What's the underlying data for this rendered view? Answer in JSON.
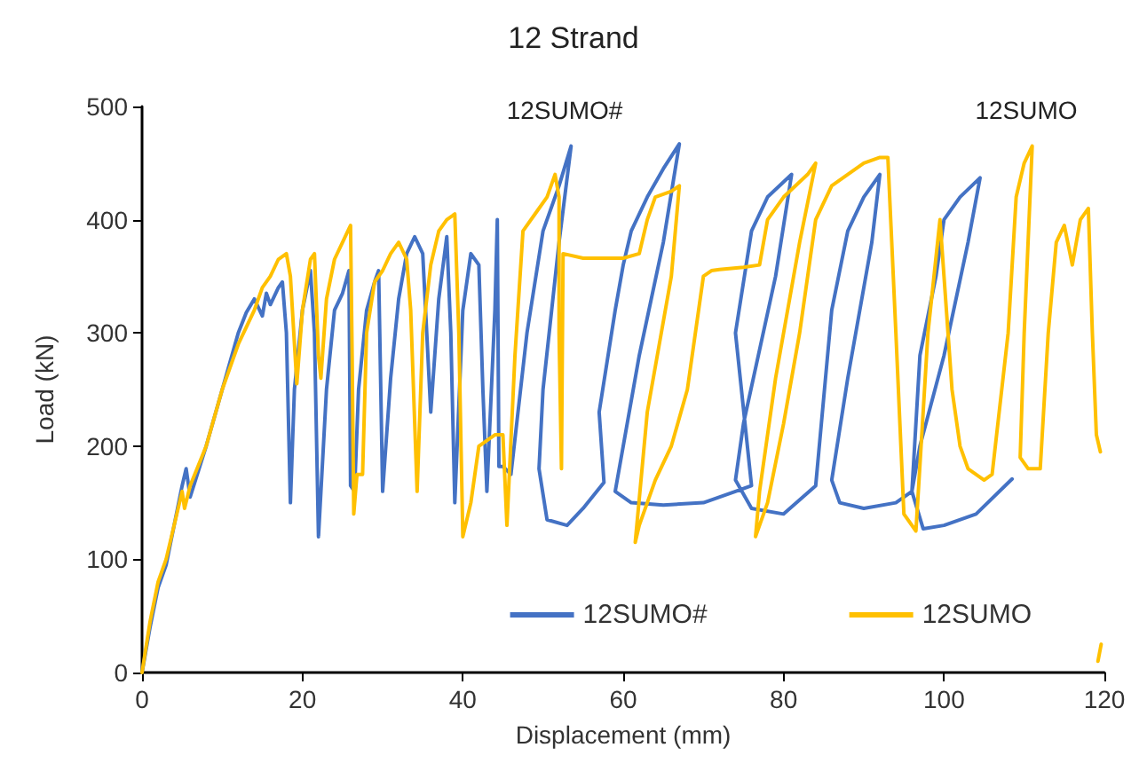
{
  "chart_data": {
    "type": "line",
    "title": "12 Strand",
    "xlabel": "Displacement (mm)",
    "ylabel": "Load (kN)",
    "xlim": [
      0,
      120
    ],
    "xticks": [
      0,
      20,
      40,
      60,
      80,
      100,
      120
    ],
    "ylim": [
      0,
      500
    ],
    "yticks": [
      0,
      100,
      200,
      300,
      400,
      500
    ],
    "grid": false,
    "legend": "bottom right",
    "marker": "none",
    "line_style": "solid",
    "annotations": [
      "12SUMO#",
      "12SUMO"
    ],
    "series": [
      {
        "name": "12SUMO#",
        "color": "#4472c4",
        "x": [
          0,
          1,
          2,
          3,
          4,
          5,
          5.5,
          6,
          8,
          10,
          12,
          13,
          14,
          15,
          15.5,
          16,
          17,
          17.5,
          18,
          18.5,
          19,
          20,
          21,
          21.5,
          22,
          23,
          24,
          25,
          25.8,
          26,
          26.5,
          27,
          28,
          29,
          29.5,
          30,
          31,
          32,
          33,
          34,
          35,
          35.5,
          36,
          37,
          38,
          38.5,
          39,
          40,
          41,
          42,
          42.5,
          43,
          44,
          44.3,
          44.5,
          45,
          46,
          48,
          50,
          52,
          53.5,
          52,
          50,
          49.5,
          50.5,
          53,
          55,
          57.6,
          57,
          59,
          60,
          61,
          63,
          65,
          67,
          65,
          62,
          60,
          59,
          61,
          65,
          70,
          74,
          76,
          74,
          76,
          78,
          81,
          79,
          75,
          74,
          76,
          80,
          84,
          86,
          88,
          90,
          92,
          91,
          88,
          86,
          87,
          90,
          94,
          96,
          97,
          99,
          100,
          102,
          104.5,
          103,
          100,
          97,
          96,
          97.4,
          100,
          104,
          108.5
        ],
        "values": [
          0,
          40,
          75,
          95,
          130,
          165,
          180,
          155,
          200,
          250,
          300,
          318,
          330,
          315,
          335,
          325,
          340,
          345,
          300,
          150,
          250,
          320,
          355,
          300,
          120,
          250,
          320,
          335,
          355,
          165,
          160,
          250,
          320,
          345,
          355,
          160,
          260,
          330,
          370,
          385,
          370,
          300,
          230,
          330,
          385,
          300,
          150,
          320,
          370,
          360,
          250,
          160,
          320,
          400,
          182,
          182,
          175,
          300,
          390,
          430,
          465,
          380,
          250,
          180,
          135,
          130,
          145,
          168,
          230,
          320,
          360,
          390,
          420,
          445,
          467,
          380,
          280,
          200,
          160,
          150,
          148,
          150,
          160,
          165,
          300,
          390,
          420,
          440,
          350,
          220,
          170,
          145,
          140,
          165,
          320,
          390,
          420,
          440,
          380,
          260,
          170,
          150,
          145,
          150,
          160,
          280,
          350,
          400,
          420,
          437,
          380,
          280,
          200,
          160,
          127,
          130,
          140,
          171
        ]
      },
      {
        "name": "12SUMO",
        "color": "#ffc000",
        "x": [
          0,
          1,
          2,
          3,
          4,
          5,
          5.3,
          6,
          8,
          10,
          12,
          14,
          15,
          16,
          17,
          18,
          18.5,
          19.3,
          20,
          21,
          21.5,
          22,
          22.3,
          23,
          24,
          25,
          26,
          26.2,
          26.4,
          26.8,
          27.5,
          28,
          29,
          30,
          31,
          32,
          33,
          33.5,
          34,
          34.3,
          35,
          36,
          37,
          38,
          39,
          39.5,
          40,
          41,
          42,
          44,
          45,
          45.5,
          46.5,
          47.5,
          49,
          50.5,
          51.5,
          52,
          52,
          52.3,
          52.5,
          55,
          60,
          62,
          63,
          64,
          66,
          67,
          66,
          63,
          61.5,
          62,
          64,
          66,
          68,
          70,
          71,
          72,
          75,
          77,
          78,
          80,
          83,
          84,
          82,
          79,
          77,
          76.5,
          78,
          80,
          82,
          84,
          86,
          88,
          90,
          92,
          93,
          94,
          95,
          96.5,
          98,
          99.5,
          100,
          101,
          102,
          103,
          105,
          106,
          108,
          109,
          110,
          111,
          110,
          109.5,
          110.5,
          112,
          113,
          114,
          115,
          116,
          117,
          118,
          118.5,
          119,
          119.5,
          null,
          119.2,
          119.6
        ],
        "values": [
          0,
          45,
          80,
          100,
          130,
          160,
          145,
          165,
          200,
          250,
          290,
          320,
          340,
          350,
          365,
          370,
          350,
          255,
          320,
          365,
          370,
          280,
          260,
          330,
          365,
          380,
          395,
          280,
          140,
          175,
          175,
          300,
          345,
          355,
          370,
          380,
          365,
          320,
          220,
          160,
          300,
          360,
          390,
          400,
          405,
          300,
          120,
          150,
          200,
          210,
          210,
          130,
          280,
          390,
          405,
          420,
          440,
          420,
          300,
          180,
          370,
          366,
          366,
          370,
          400,
          420,
          425,
          430,
          350,
          230,
          115,
          130,
          170,
          200,
          250,
          350,
          355,
          356,
          358,
          360,
          400,
          420,
          440,
          450,
          380,
          260,
          160,
          120,
          150,
          220,
          300,
          400,
          430,
          440,
          450,
          455,
          455,
          300,
          140,
          125,
          300,
          400,
          350,
          250,
          200,
          180,
          170,
          175,
          300,
          420,
          450,
          465,
          300,
          190,
          180,
          180,
          300,
          380,
          395,
          360,
          400,
          410,
          300,
          210,
          195,
          null,
          10,
          25
        ]
      }
    ]
  }
}
